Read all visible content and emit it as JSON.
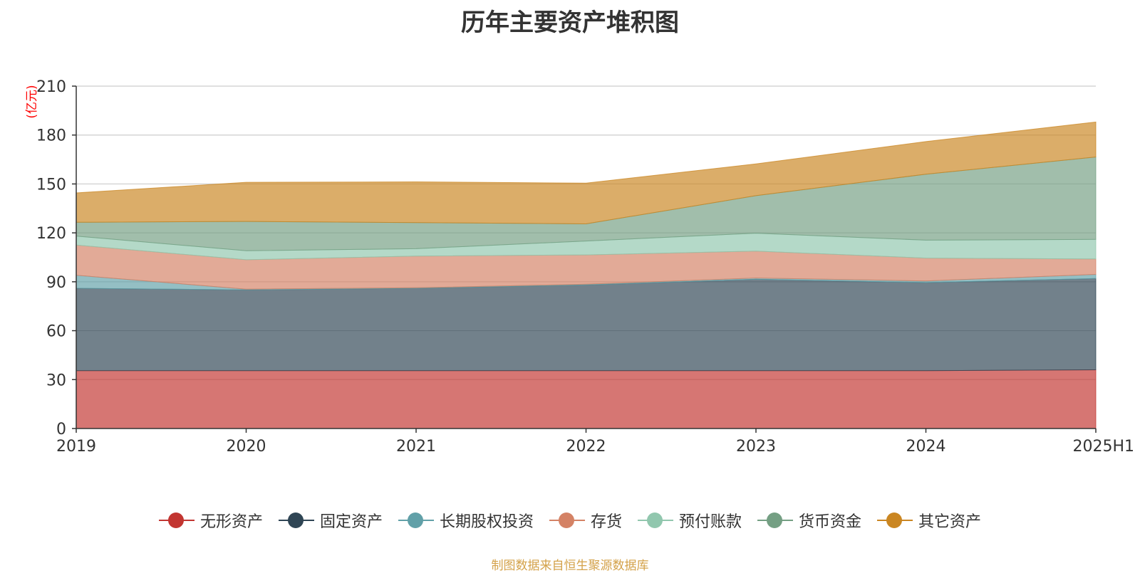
{
  "chart_data": {
    "type": "area",
    "stacked": true,
    "title": "历年主要资产堆积图",
    "unit_label": "(亿元)",
    "x": [
      "2019",
      "2020",
      "2021",
      "2022",
      "2023",
      "2024",
      "2025H1"
    ],
    "ylim": [
      0,
      210
    ],
    "yticks": [
      0,
      30,
      60,
      90,
      120,
      150,
      180,
      210
    ],
    "grid": true,
    "legend_position": "bottom",
    "series": [
      {
        "name": "无形资产",
        "color": "#c23531",
        "values": [
          35.5,
          35.5,
          35.5,
          35.5,
          35.5,
          35.5,
          36.0
        ]
      },
      {
        "name": "固定资产",
        "color": "#2f4554",
        "values": [
          50.5,
          49.5,
          50.5,
          52.5,
          56.0,
          54.0,
          56.0
        ]
      },
      {
        "name": "长期股权投资",
        "color": "#61a0a8",
        "values": [
          8.0,
          0.5,
          0.3,
          0.5,
          0.8,
          1.0,
          2.5
        ]
      },
      {
        "name": "存货",
        "color": "#d48265",
        "values": [
          18.5,
          18.0,
          19.5,
          18.0,
          16.5,
          14.0,
          9.5
        ]
      },
      {
        "name": "预付账款",
        "color": "#91c7ae",
        "values": [
          5.5,
          5.5,
          4.5,
          8.5,
          11.0,
          11.0,
          12.0
        ]
      },
      {
        "name": "货币资金",
        "color": "#749f83",
        "values": [
          8.5,
          18.0,
          16.0,
          10.5,
          23.0,
          40.5,
          50.5
        ]
      },
      {
        "name": "其它资产",
        "color": "#ca8622",
        "values": [
          18.0,
          24.0,
          25.0,
          25.0,
          19.5,
          20.0,
          21.5
        ]
      }
    ]
  },
  "footer": {
    "source_note": "制图数据来自恒生聚源数据库"
  }
}
